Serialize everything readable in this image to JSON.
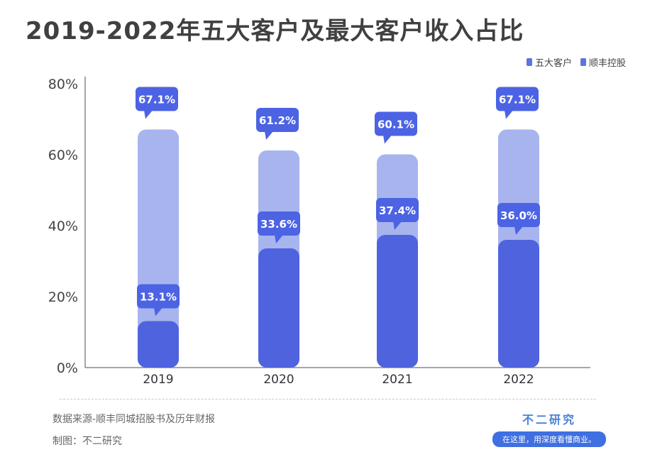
{
  "title": "2019-2022年五大客户及最大客户收入占比",
  "legend": [
    {
      "label": "五大客户",
      "color": "#5b74e0"
    },
    {
      "label": "顺丰控股",
      "color": "#5b74e0"
    }
  ],
  "chart_data": {
    "type": "bar",
    "title": "2019-2022年五大客户及最大客户收入占比",
    "categories": [
      "2019",
      "2020",
      "2021",
      "2022"
    ],
    "series": [
      {
        "name": "五大客户",
        "values": [
          67.1,
          61.2,
          60.1,
          67.1
        ],
        "labels": [
          "67.1%",
          "61.2%",
          "60.1%",
          "67.1%"
        ]
      },
      {
        "name": "顺丰控股",
        "values": [
          13.1,
          33.6,
          37.4,
          36.0
        ],
        "labels": [
          "13.1%",
          "33.6%",
          "37.4%",
          "36.0%"
        ]
      }
    ],
    "yticks": [
      "0%",
      "20%",
      "40%",
      "60%",
      "80%"
    ],
    "ylim": [
      0,
      80
    ],
    "xlabel": "",
    "ylabel": "",
    "colors": {
      "light": "#a8b4ee",
      "dark": "#4f63df",
      "label_bg": "#4c63e4",
      "axis": "#888888"
    }
  },
  "footer": {
    "source": "数据来源-顺丰同城招股书及历年财报",
    "author": "制图：不二研究",
    "brand_name": "不二研究",
    "brand_slogan": "在这里，用深度看懂商业。"
  }
}
